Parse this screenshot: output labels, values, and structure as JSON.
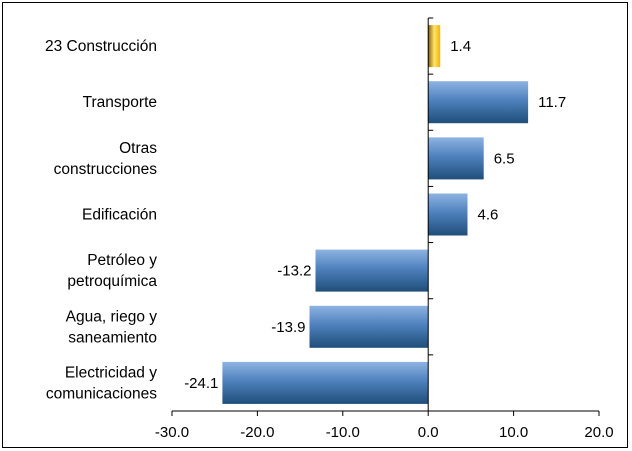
{
  "chart_data": {
    "type": "bar",
    "orientation": "horizontal",
    "categories": [
      "23 Construcción",
      "Transporte",
      "Otras construcciones",
      "Edificación",
      "Petróleo y petroquímica",
      "Agua, riego y saneamiento",
      "Electricidad y comunicaciones"
    ],
    "category_lines": [
      [
        "23 Construcción"
      ],
      [
        "Transporte"
      ],
      [
        "Otras",
        "construcciones"
      ],
      [
        "Edificación"
      ],
      [
        "Petróleo y",
        "petroquímica"
      ],
      [
        "Agua, riego y",
        "saneamiento"
      ],
      [
        "Electricidad y",
        "comunicaciones"
      ]
    ],
    "values": [
      1.4,
      11.7,
      6.5,
      4.6,
      -13.2,
      -13.9,
      -24.1
    ],
    "value_labels": [
      "1.4",
      "11.7",
      "6.5",
      "4.6",
      "-13.2",
      "-13.9",
      "-24.1"
    ],
    "highlight_index": 0,
    "xlim": [
      -30.0,
      20.0
    ],
    "xticks": [
      -30.0,
      -20.0,
      -10.0,
      0.0,
      10.0,
      20.0
    ],
    "xtick_labels": [
      "-30.0",
      "-20.0",
      "-10.0",
      "0.0",
      "10.0",
      "20.0"
    ],
    "grid": false,
    "legend": "none",
    "title": "",
    "xlabel": "",
    "ylabel": "",
    "colors": {
      "bar": "#4f81bd",
      "bar_light": "#8db3e2",
      "bar_dark": "#1f4e79",
      "highlight": "#f2b600",
      "highlight_light": "#ffe36b",
      "highlight_dark": "#8a6200",
      "axis": "#000000"
    }
  }
}
